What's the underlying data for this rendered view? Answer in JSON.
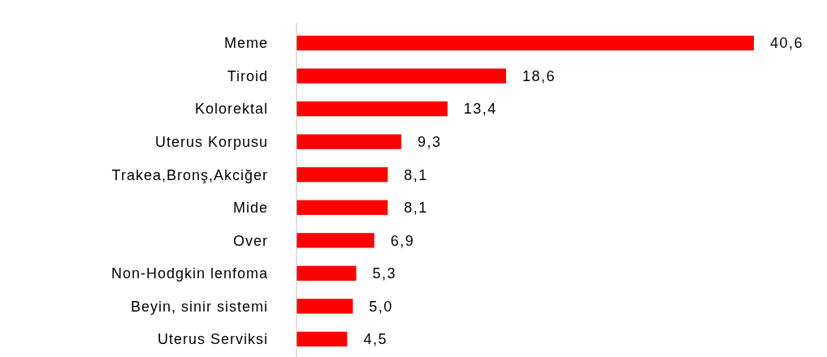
{
  "chart_data": {
    "type": "bar",
    "orientation": "horizontal",
    "categories": [
      "Meme",
      "Tiroid",
      "Kolorektal",
      "Uterus Korpusu",
      "Trakea,Bronş,Akciğer",
      "Mide",
      "Over",
      "Non-Hodgkin lenfoma",
      "Beyin, sinir sistemi",
      "Uterus Serviksi"
    ],
    "values": [
      40.6,
      18.6,
      13.4,
      9.3,
      8.1,
      8.1,
      6.9,
      5.3,
      5.0,
      4.5
    ],
    "value_labels": [
      "40,6",
      "18,6",
      "13,4",
      "9,3",
      "8,1",
      "8,1",
      "6,9",
      "5,3",
      "5,0",
      "4,5"
    ],
    "color": "#ff0000"
  }
}
